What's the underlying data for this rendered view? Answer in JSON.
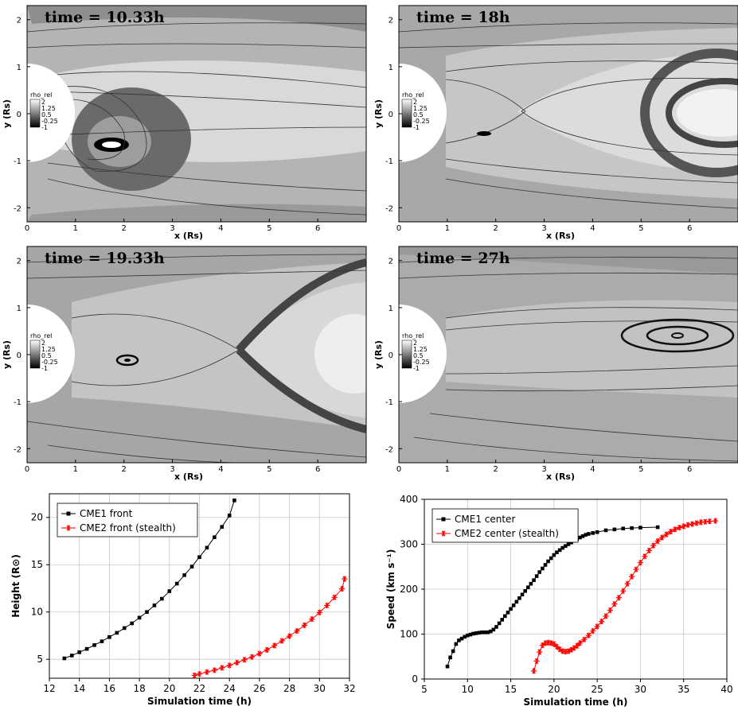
{
  "panels": [
    {
      "title": "time = 10.33h"
    },
    {
      "title": "time = 18h"
    },
    {
      "title": "time = 19.33h"
    },
    {
      "title": "time = 27h"
    }
  ],
  "map_axes": {
    "xlabel": "x (Rs)",
    "ylabel": "y (Rs)",
    "xticks": [
      "0",
      "1",
      "2",
      "3",
      "4",
      "5",
      "6"
    ],
    "yticks": [
      "2",
      "1",
      "0",
      "-1",
      "-2"
    ]
  },
  "colorbar": {
    "label": "rho_rel",
    "ticks": [
      "2",
      "1.25",
      "0.5",
      "-0.25",
      "-1"
    ]
  },
  "chart_data": [
    {
      "type": "scatter",
      "xlabel": "Simulation time (h)",
      "ylabel": "Height (R⊙)",
      "xlim": [
        12,
        32
      ],
      "ylim": [
        3,
        22.5
      ],
      "xticks": [
        12,
        14,
        16,
        18,
        20,
        22,
        24,
        26,
        28,
        30,
        32
      ],
      "yticks": [
        5,
        10,
        15,
        20
      ],
      "legend_position": "top-left",
      "grid": true,
      "series": [
        {
          "name": "CME1 front",
          "color": "#000000",
          "marker": "square",
          "x": [
            13.0,
            13.5,
            14.0,
            14.5,
            15.0,
            15.5,
            16.0,
            16.5,
            17.0,
            17.5,
            18.0,
            18.5,
            19.0,
            19.5,
            20.0,
            20.5,
            21.0,
            21.5,
            22.0,
            22.5,
            23.0,
            23.5,
            24.0,
            24.33
          ],
          "y": [
            5.1,
            5.4,
            5.75,
            6.1,
            6.5,
            6.9,
            7.35,
            7.8,
            8.3,
            8.8,
            9.4,
            10.0,
            10.7,
            11.4,
            12.2,
            13.0,
            13.9,
            14.8,
            15.8,
            16.8,
            17.9,
            19.0,
            20.2,
            21.8
          ]
        },
        {
          "name": "CME2 front (stealth)",
          "color": "#ff0000",
          "marker": "star",
          "x": [
            21.67,
            22.0,
            22.5,
            23.0,
            23.5,
            24.0,
            24.5,
            25.0,
            25.5,
            26.0,
            26.5,
            27.0,
            27.5,
            28.0,
            28.5,
            29.0,
            29.5,
            30.0,
            30.5,
            31.0,
            31.5,
            31.67
          ],
          "y": [
            3.3,
            3.45,
            3.65,
            3.85,
            4.1,
            4.35,
            4.65,
            4.95,
            5.25,
            5.6,
            6.0,
            6.45,
            6.95,
            7.45,
            8.0,
            8.6,
            9.25,
            9.95,
            10.7,
            11.55,
            12.45,
            13.5
          ]
        }
      ]
    },
    {
      "type": "line",
      "xlabel": "Simulation time (h)",
      "ylabel": "Speed (km s⁻¹)",
      "xlim": [
        5,
        40
      ],
      "ylim": [
        0,
        400
      ],
      "xticks": [
        5,
        10,
        15,
        20,
        25,
        30,
        35,
        40
      ],
      "yticks": [
        0,
        100,
        200,
        300,
        400
      ],
      "legend_position": "top-left",
      "grid": true,
      "series": [
        {
          "name": "CME1 center",
          "color": "#000000",
          "marker": "square",
          "x": [
            7.67,
            8.0,
            8.33,
            8.67,
            9.0,
            9.33,
            9.67,
            10.0,
            10.33,
            10.67,
            11.0,
            11.33,
            11.67,
            12.0,
            12.33,
            12.67,
            13.0,
            13.33,
            13.67,
            14.0,
            14.33,
            14.67,
            15.0,
            15.33,
            15.67,
            16.0,
            16.33,
            16.67,
            17.0,
            17.33,
            17.67,
            18.0,
            18.33,
            18.67,
            19.0,
            19.33,
            19.67,
            20.0,
            20.33,
            20.67,
            21.0,
            21.33,
            21.67,
            22.0,
            22.33,
            22.67,
            23.0,
            23.33,
            23.67,
            24.0,
            24.5,
            25.0,
            26.0,
            27.0,
            28.0,
            29.0,
            30.0,
            32.0
          ],
          "y": [
            28,
            48,
            62,
            78,
            86,
            90,
            94,
            97,
            99,
            101,
            102,
            103,
            104,
            104,
            104,
            106,
            110,
            116,
            124,
            132,
            140,
            148,
            156,
            164,
            172,
            180,
            188,
            196,
            204,
            212,
            220,
            229,
            238,
            246,
            254,
            262,
            269,
            276,
            282,
            287,
            292,
            296,
            300,
            304,
            308,
            312,
            315,
            318,
            321,
            323,
            325,
            327,
            331,
            333,
            335,
            336,
            337,
            338
          ]
        },
        {
          "name": "CME2 center (stealth)",
          "color": "#ff0000",
          "marker": "star",
          "x": [
            17.67,
            18.0,
            18.33,
            18.67,
            19.0,
            19.33,
            19.67,
            20.0,
            20.33,
            20.67,
            21.0,
            21.33,
            21.67,
            22.0,
            22.33,
            22.67,
            23.0,
            23.5,
            24.0,
            24.5,
            25.0,
            25.5,
            26.0,
            26.5,
            27.0,
            27.5,
            28.0,
            28.5,
            29.0,
            29.5,
            30.0,
            30.5,
            31.0,
            31.5,
            32.0,
            32.5,
            33.0,
            33.5,
            34.0,
            34.5,
            35.0,
            35.5,
            36.0,
            36.5,
            37.0,
            37.5,
            38.0,
            38.67
          ],
          "y": [
            18,
            40,
            60,
            75,
            80,
            81,
            80,
            78,
            72,
            66,
            62,
            61,
            62,
            65,
            69,
            74,
            80,
            88,
            97,
            107,
            117,
            128,
            140,
            153,
            167,
            181,
            196,
            212,
            228,
            244,
            259,
            273,
            286,
            297,
            307,
            315,
            322,
            328,
            333,
            337,
            340,
            343,
            345,
            347,
            349,
            350,
            351,
            352
          ]
        }
      ]
    }
  ]
}
